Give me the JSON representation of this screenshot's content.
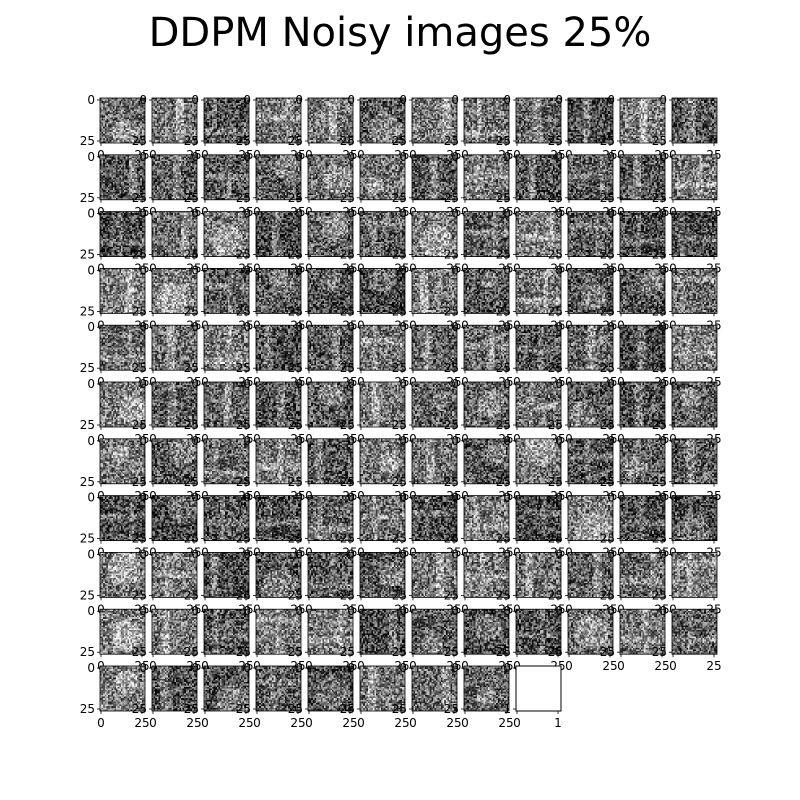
{
  "chart_data": {
    "type": "heatmap",
    "title": "DDPM Noisy images 25%",
    "layout": {
      "rows": 11,
      "cols": 12
    },
    "image_count": 128,
    "image_size": [
      28,
      28
    ],
    "colormap": "gray",
    "x_ticks": [
      "0",
      "25"
    ],
    "y_ticks": [
      "0",
      "25"
    ],
    "empty_axis": {
      "x_ticks": [
        "0",
        "1"
      ],
      "y_ticks": [
        "0",
        "1"
      ],
      "xlim": [
        0,
        1
      ],
      "ylim": [
        0,
        1
      ]
    }
  }
}
